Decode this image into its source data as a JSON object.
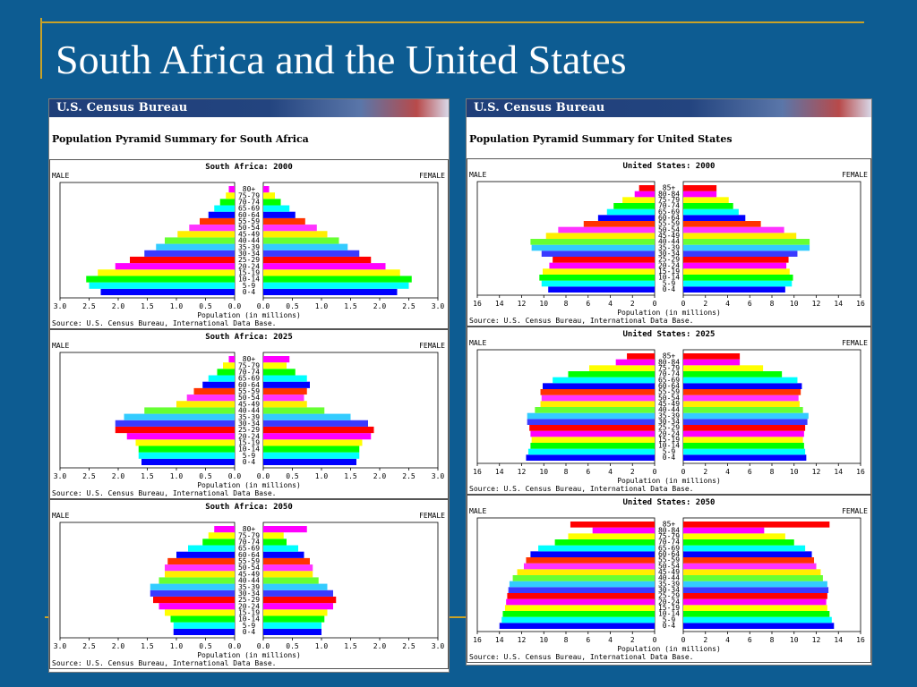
{
  "slide": {
    "title": "South Africa and the United States"
  },
  "panels": [
    {
      "header": "U.S. Census Bureau",
      "subtitle": "Population Pyramid Summary for South Africa",
      "male_label": "MALE",
      "female_label": "FEMALE",
      "xlabel": "Population (in millions)",
      "source": "Source: U.S. Census Bureau, International Data Base.",
      "max": 3.0,
      "ticks": [
        "3.0",
        "2.5",
        "2.0",
        "1.5",
        "1.0",
        "0.5",
        "0.0",
        "0.0",
        "0.5",
        "1.0",
        "1.5",
        "2.0",
        "2.5",
        "3.0"
      ]
    },
    {
      "header": "U.S. Census Bureau",
      "subtitle": "Population Pyramid Summary for United States",
      "male_label": "MALE",
      "female_label": "FEMALE",
      "xlabel": "Population (in millions)",
      "source": "Source: U.S. Census Bureau, International Data Base.",
      "max": 16,
      "ticks": [
        "16",
        "14",
        "12",
        "10",
        "8",
        "6",
        "4",
        "2",
        "0",
        "0",
        "2",
        "4",
        "6",
        "8",
        "10",
        "12",
        "14",
        "16"
      ]
    }
  ],
  "bar_colors": [
    "#0000ff",
    "#00ffff",
    "#00ff00",
    "#ffff00",
    "#ff00ff",
    "#ff0000",
    "#3a3aff",
    "#33ccff",
    "#66ff33",
    "#ffee00",
    "#ff33ff",
    "#ff3300"
  ],
  "chart_data": [
    {
      "type": "bar",
      "title": "South Africa: 2000",
      "categories": [
        "0-4",
        "5-9",
        "10-14",
        "15-19",
        "20-24",
        "25-29",
        "30-34",
        "35-39",
        "40-44",
        "45-49",
        "50-54",
        "55-59",
        "60-64",
        "65-69",
        "70-74",
        "75-79",
        "80+"
      ],
      "series": [
        {
          "name": "MALE",
          "values": [
            2.3,
            2.5,
            2.55,
            2.35,
            2.05,
            1.8,
            1.55,
            1.35,
            1.2,
            0.98,
            0.78,
            0.6,
            0.45,
            0.35,
            0.25,
            0.15,
            0.1
          ]
        },
        {
          "name": "FEMALE",
          "values": [
            2.3,
            2.5,
            2.55,
            2.35,
            2.1,
            1.85,
            1.65,
            1.45,
            1.3,
            1.1,
            0.92,
            0.72,
            0.55,
            0.45,
            0.3,
            0.2,
            0.1
          ]
        }
      ],
      "xlim": [
        0,
        3.0
      ]
    },
    {
      "type": "bar",
      "title": "South Africa: 2025",
      "categories": [
        "0-4",
        "5-9",
        "10-14",
        "15-19",
        "20-24",
        "25-29",
        "30-34",
        "35-39",
        "40-44",
        "45-49",
        "50-54",
        "55-59",
        "60-64",
        "65-69",
        "70-74",
        "75-79",
        "80+"
      ],
      "series": [
        {
          "name": "MALE",
          "values": [
            1.6,
            1.65,
            1.65,
            1.7,
            1.85,
            2.05,
            2.05,
            1.9,
            1.55,
            1.0,
            0.82,
            0.7,
            0.55,
            0.45,
            0.3,
            0.2,
            0.1
          ]
        },
        {
          "name": "FEMALE",
          "values": [
            1.6,
            1.65,
            1.65,
            1.7,
            1.85,
            1.9,
            1.8,
            1.5,
            1.05,
            0.75,
            0.7,
            0.75,
            0.8,
            0.75,
            0.55,
            0.4,
            0.45
          ]
        }
      ],
      "xlim": [
        0,
        3.0
      ]
    },
    {
      "type": "bar",
      "title": "South Africa: 2050",
      "categories": [
        "0-4",
        "5-9",
        "10-14",
        "15-19",
        "20-24",
        "25-29",
        "30-34",
        "35-39",
        "40-44",
        "45-49",
        "50-54",
        "55-59",
        "60-64",
        "65-69",
        "70-74",
        "75-79",
        "80+"
      ],
      "series": [
        {
          "name": "MALE",
          "values": [
            1.05,
            1.05,
            1.1,
            1.2,
            1.3,
            1.4,
            1.45,
            1.45,
            1.3,
            1.2,
            1.2,
            1.15,
            1.0,
            0.8,
            0.55,
            0.45,
            0.35
          ]
        },
        {
          "name": "FEMALE",
          "values": [
            1.0,
            1.0,
            1.05,
            1.1,
            1.2,
            1.25,
            1.2,
            1.1,
            0.95,
            0.85,
            0.85,
            0.8,
            0.7,
            0.6,
            0.4,
            0.35,
            0.75
          ]
        }
      ],
      "xlim": [
        0,
        3.0
      ]
    },
    {
      "type": "bar",
      "title": "United States: 2000",
      "categories": [
        "0-4",
        "5-9",
        "10-14",
        "15-19",
        "20-24",
        "25-29",
        "30-34",
        "35-39",
        "40-44",
        "45-49",
        "50-54",
        "55-59",
        "60-64",
        "65-69",
        "70-74",
        "75-79",
        "80-84",
        "85+"
      ],
      "series": [
        {
          "name": "MALE",
          "values": [
            9.6,
            10.2,
            10.4,
            10.1,
            9.5,
            9.2,
            10.2,
            11.1,
            11.2,
            9.8,
            8.7,
            6.4,
            5.1,
            4.3,
            3.7,
            2.9,
            1.8,
            1.4
          ]
        },
        {
          "name": "FEMALE",
          "values": [
            9.2,
            9.8,
            9.9,
            9.6,
            9.3,
            9.5,
            10.3,
            11.4,
            11.4,
            10.2,
            9.1,
            7.0,
            5.6,
            5.0,
            4.5,
            4.1,
            3.0,
            3.0
          ]
        }
      ],
      "xlim": [
        0,
        16
      ]
    },
    {
      "type": "bar",
      "title": "United States: 2025",
      "categories": [
        "0-4",
        "5-9",
        "10-14",
        "15-19",
        "20-24",
        "25-29",
        "30-34",
        "35-39",
        "40-44",
        "45-49",
        "50-54",
        "55-59",
        "60-64",
        "65-69",
        "70-74",
        "75-79",
        "80-84",
        "85+"
      ],
      "series": [
        {
          "name": "MALE",
          "values": [
            11.6,
            11.4,
            11.2,
            11.1,
            11.2,
            11.3,
            11.5,
            11.5,
            10.8,
            10.3,
            10.2,
            10.3,
            10.1,
            9.2,
            7.8,
            5.9,
            3.5,
            2.5
          ]
        },
        {
          "name": "FEMALE",
          "values": [
            11.1,
            11.0,
            10.9,
            10.8,
            10.9,
            11.0,
            11.2,
            11.3,
            10.8,
            10.5,
            10.4,
            10.6,
            10.7,
            10.3,
            8.9,
            7.2,
            5.1,
            5.1
          ]
        }
      ],
      "xlim": [
        0,
        16
      ]
    },
    {
      "type": "bar",
      "title": "United States: 2050",
      "categories": [
        "0-4",
        "5-9",
        "10-14",
        "15-19",
        "20-24",
        "25-29",
        "30-34",
        "35-39",
        "40-44",
        "45-49",
        "50-54",
        "55-59",
        "60-64",
        "65-69",
        "70-74",
        "75-79",
        "80-84",
        "85+"
      ],
      "series": [
        {
          "name": "MALE",
          "values": [
            14.0,
            13.8,
            13.7,
            13.5,
            13.4,
            13.3,
            13.2,
            13.1,
            12.8,
            12.4,
            11.8,
            11.6,
            11.2,
            10.5,
            9.0,
            7.8,
            5.6,
            7.6
          ]
        },
        {
          "name": "FEMALE",
          "values": [
            13.6,
            13.4,
            13.2,
            13.0,
            12.9,
            13.0,
            13.1,
            13.0,
            12.6,
            12.4,
            12.0,
            11.8,
            11.6,
            11.0,
            10.0,
            9.2,
            7.3,
            13.2
          ]
        }
      ],
      "xlim": [
        0,
        16
      ]
    }
  ]
}
